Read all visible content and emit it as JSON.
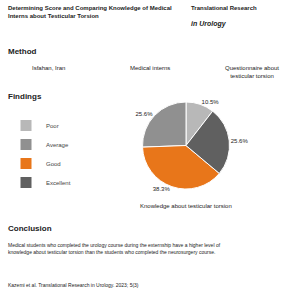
{
  "chart_data": {
    "type": "pie",
    "title": "Knowledge about testicular torsion",
    "categories": [
      "Poor",
      "Average",
      "Good",
      "Excellent"
    ],
    "values": [
      10.5,
      25.6,
      38.3,
      25.6
    ],
    "value_labels": [
      "10.5%",
      "25.6%",
      "38.3%",
      "25.6%"
    ],
    "colors": [
      "#b8b8b8",
      "#909090",
      "#e8761a",
      "#606060"
    ],
    "data_labels": true,
    "legend": "left",
    "annotations": [
      "Determining Score and Comparing Knowledge of Medical\nInterns about Testicular Torsion",
      "Translational Research",
      "in Urology",
      "Method",
      "Isfahan, Iran",
      "Medical interns",
      "Questionnaire about\ntesticular torsion",
      "Findings",
      "Conclusion",
      "Medical students who completed the urology course during the externship have a higher level of\nknowledge about testicular torsion than the students who completed the neurosurgery course.",
      "Kazemi et al. Translational Research in Urology. 2023; 5(3)"
    ]
  }
}
